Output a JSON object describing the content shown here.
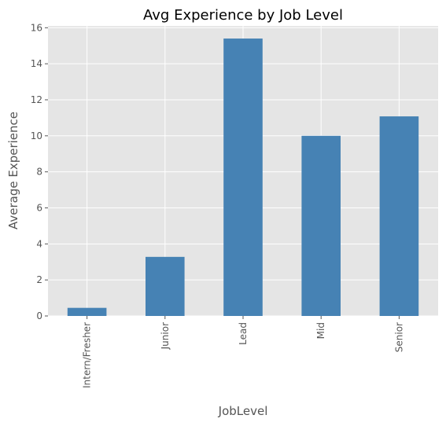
{
  "chart_data": {
    "type": "bar",
    "title": "Avg Experience by Job Level",
    "xlabel": "JobLevel",
    "ylabel": "Average Experience",
    "categories": [
      "Intern/Fresher",
      "Junior",
      "Lead",
      "Mid",
      "Senior"
    ],
    "values": [
      0.45,
      3.28,
      15.4,
      10.0,
      11.08
    ],
    "ylim": [
      0,
      16.1
    ],
    "yticks": [
      "0",
      "2",
      "4",
      "6",
      "8",
      "10",
      "12",
      "14",
      "16"
    ],
    "grid": true,
    "colors": {
      "bar": "#4682b4",
      "plot_background": "#e5e5e5",
      "grid": "#ffffff"
    }
  }
}
